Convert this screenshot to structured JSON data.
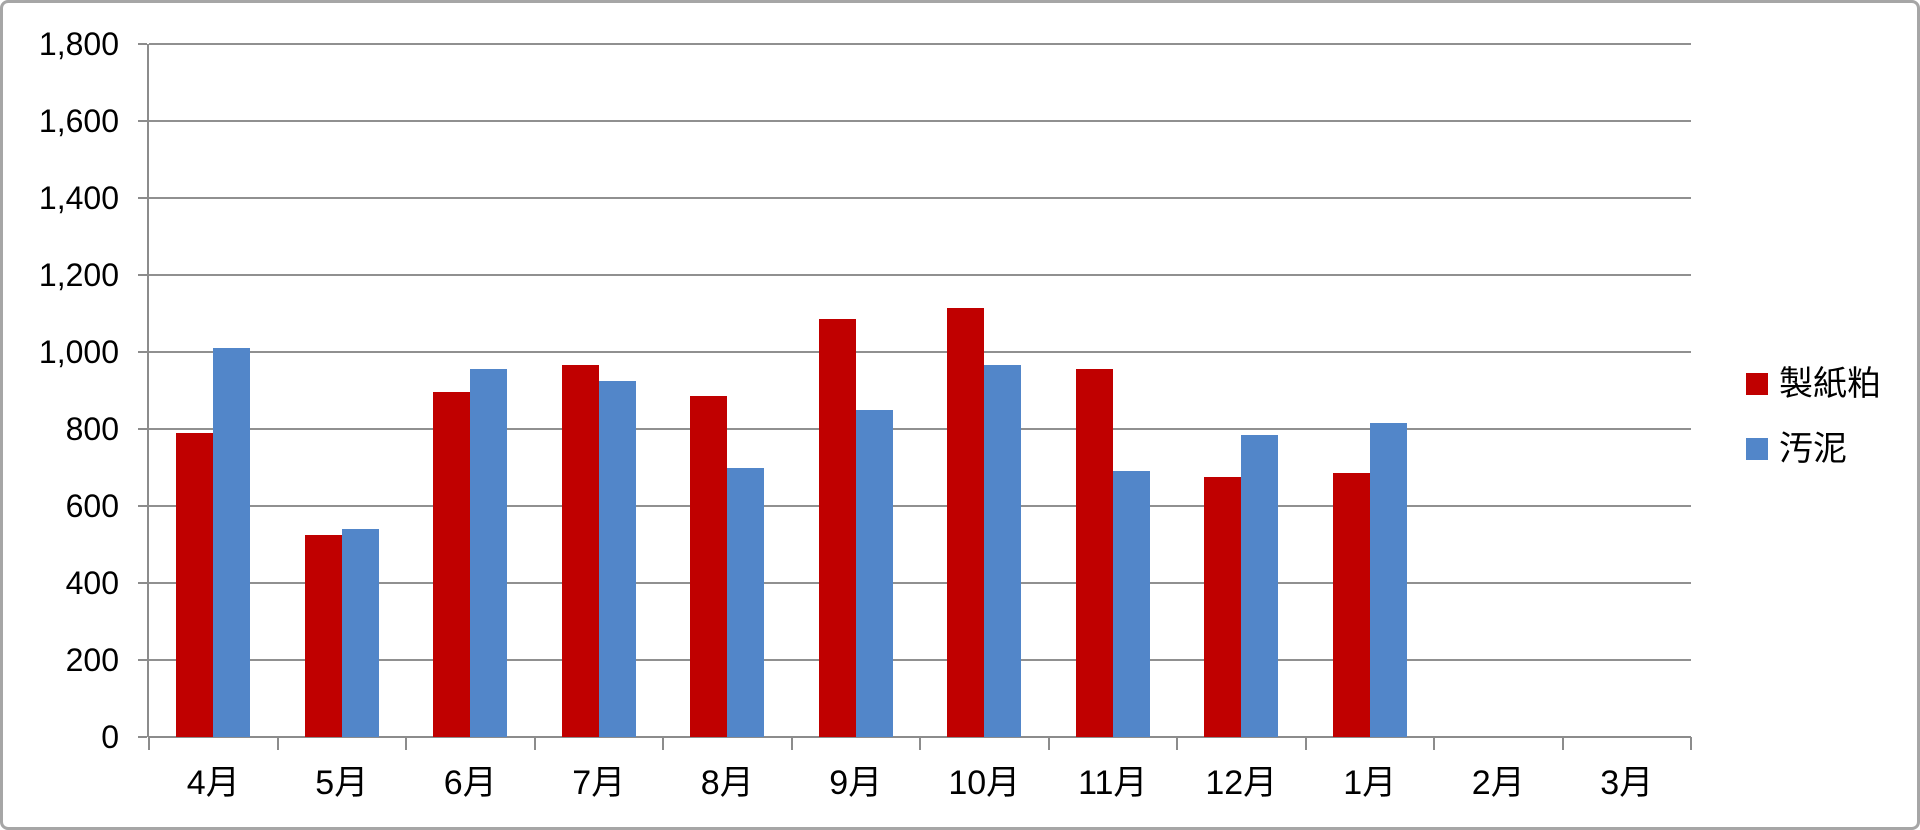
{
  "chart_data": {
    "type": "bar",
    "title": "",
    "xlabel": "",
    "ylabel": "",
    "categories": [
      "4月",
      "5月",
      "6月",
      "7月",
      "8月",
      "9月",
      "10月",
      "11月",
      "12月",
      "1月",
      "2月",
      "3月"
    ],
    "series": [
      {
        "name": "製紙粕",
        "color": "#C00000",
        "values": [
          790,
          525,
          895,
          965,
          885,
          1085,
          1115,
          955,
          675,
          685,
          null,
          null
        ]
      },
      {
        "name": "汚泥",
        "color": "#5286C9",
        "values": [
          1010,
          540,
          955,
          925,
          700,
          850,
          965,
          690,
          785,
          815,
          null,
          null
        ]
      }
    ],
    "ylim": [
      0,
      1800
    ],
    "y_step": 200,
    "y_ticks": [
      "0",
      "200",
      "400",
      "600",
      "800",
      "1,000",
      "1,200",
      "1,400",
      "1,600",
      "1,800"
    ],
    "grid": true,
    "legend_position": "right"
  },
  "colors": {
    "gridline": "#909090",
    "axis": "#8C8C8C",
    "frame_border": "#A6A6A6",
    "background": "#FFFFFF",
    "text": "#000000"
  }
}
